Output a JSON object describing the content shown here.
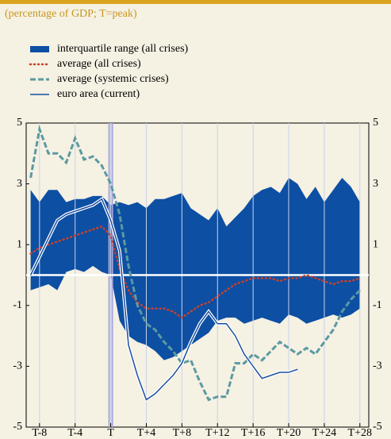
{
  "chart_data": {
    "type": "line",
    "subtitle": "(percentage of GDP; T=peak)",
    "x": [
      -9,
      -8,
      -7,
      -6,
      -5,
      -4,
      -3,
      -2,
      -1,
      0,
      1,
      2,
      3,
      4,
      5,
      6,
      7,
      8,
      9,
      10,
      11,
      12,
      13,
      14,
      15,
      16,
      17,
      18,
      19,
      20,
      21,
      22,
      23,
      24,
      25,
      26,
      27,
      28
    ],
    "xlim": [
      -9.5,
      29
    ],
    "xticks": [
      {
        "value": -8,
        "label": "T-8"
      },
      {
        "value": -4,
        "label": "T-4"
      },
      {
        "value": 0,
        "label": "T"
      },
      {
        "value": 4,
        "label": "T+4"
      },
      {
        "value": 8,
        "label": "T+8"
      },
      {
        "value": 12,
        "label": "T+12"
      },
      {
        "value": 16,
        "label": "T+16"
      },
      {
        "value": 20,
        "label": "T+20"
      },
      {
        "value": 24,
        "label": "T+24"
      },
      {
        "value": 28,
        "label": "T+28"
      }
    ],
    "ylim": [
      -5,
      5
    ],
    "yticks": [
      5,
      3,
      1,
      -1,
      -3,
      -5
    ],
    "hline": 0,
    "vline": 0,
    "series": [
      {
        "name": "interquartile range (all crises)",
        "style": "band",
        "color": "#0d4fa3",
        "high": [
          2.8,
          2.4,
          2.8,
          2.8,
          2.4,
          2.5,
          2.5,
          2.6,
          2.6,
          2.3,
          2.4,
          2.3,
          2.4,
          2.2,
          2.5,
          2.5,
          2.6,
          2.7,
          2.2,
          2.0,
          1.8,
          2.2,
          1.6,
          1.9,
          2.2,
          2.6,
          2.8,
          2.9,
          2.7,
          3.2,
          3.0,
          2.5,
          2.9,
          2.4,
          2.8,
          3.2,
          2.9,
          2.4
        ],
        "low": [
          -0.5,
          -0.4,
          -0.3,
          -0.5,
          0.1,
          0.2,
          0.1,
          0.3,
          0.1,
          0.0,
          -1.5,
          -2.0,
          -2.2,
          -2.3,
          -2.5,
          -2.8,
          -2.7,
          -2.5,
          -2.3,
          -2.1,
          -1.9,
          -1.5,
          -1.4,
          -1.4,
          -1.6,
          -1.5,
          -1.4,
          -1.5,
          -1.6,
          -1.3,
          -1.4,
          -1.6,
          -1.5,
          -1.4,
          -1.3,
          -1.4,
          -1.3,
          -1.1
        ]
      },
      {
        "name": "average (all crises)",
        "style": "dotted",
        "color": "#c9412a",
        "values": [
          0.7,
          0.9,
          1.0,
          1.1,
          1.2,
          1.3,
          1.4,
          1.5,
          1.6,
          1.3,
          0.2,
          -0.5,
          -0.9,
          -1.1,
          -1.1,
          -1.1,
          -1.2,
          -1.4,
          -1.2,
          -1.0,
          -0.9,
          -0.7,
          -0.5,
          -0.3,
          -0.2,
          -0.1,
          -0.1,
          -0.1,
          -0.2,
          -0.1,
          -0.1,
          0.0,
          -0.1,
          -0.2,
          -0.3,
          -0.2,
          -0.2,
          -0.1
        ]
      },
      {
        "name": "average (systemic crises)",
        "style": "dashed",
        "color": "#5b9aa1",
        "values": [
          3.2,
          4.8,
          4.0,
          4.0,
          3.7,
          4.5,
          3.8,
          3.9,
          3.6,
          3.0,
          2.0,
          0.3,
          -1.0,
          -1.6,
          -1.8,
          -2.2,
          -2.5,
          -2.9,
          -2.8,
          -3.5,
          -4.1,
          -4.0,
          -4.0,
          -2.9,
          -2.9,
          -2.6,
          -2.8,
          -2.5,
          -2.2,
          -2.4,
          -2.6,
          -2.4,
          -2.6,
          -2.2,
          -1.8,
          -1.2,
          -0.8,
          -0.5
        ]
      },
      {
        "name": "euro area (current)",
        "style": "solid",
        "color": "#1a4fa0",
        "values": [
          0.0,
          0.6,
          1.2,
          1.8,
          2.0,
          2.1,
          2.2,
          2.3,
          2.5,
          1.8,
          0.8,
          -2.3,
          -3.3,
          -4.1,
          -3.9,
          -3.6,
          -3.3,
          -2.9,
          -2.2,
          -1.6,
          -1.2,
          -1.6,
          -1.6,
          -2.0,
          -2.6,
          -3.0,
          -3.4,
          -3.3,
          -3.2,
          -3.2,
          -3.1,
          null,
          null,
          null,
          null,
          null,
          null,
          null
        ]
      }
    ]
  }
}
